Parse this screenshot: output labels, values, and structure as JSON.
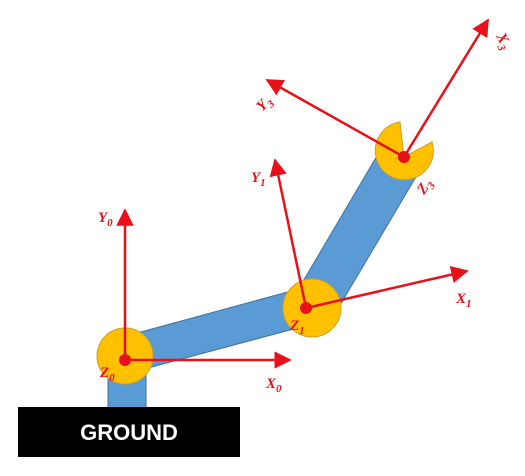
{
  "ground": {
    "label": "GROUND"
  },
  "labels": {
    "y0": {
      "letter": "Y",
      "sub": "0"
    },
    "x0": {
      "letter": "X",
      "sub": "0"
    },
    "z0": {
      "letter": "Z",
      "sub": "0"
    },
    "y1": {
      "letter": "Y",
      "sub": "1"
    },
    "x1": {
      "letter": "X",
      "sub": "1"
    },
    "z1": {
      "letter": "Z",
      "sub": "1"
    },
    "y3": {
      "letter": "Y",
      "sub": "3"
    },
    "x3": {
      "letter": "X",
      "sub": "3"
    },
    "z3": {
      "letter": "Z",
      "sub": "3"
    }
  },
  "colors": {
    "link": "#5b9bd5",
    "link_stroke": "#41719c",
    "joint": "#ffc000",
    "joint_stroke": "#c9a227",
    "axis": "#e8111a",
    "ground": "#000000"
  }
}
